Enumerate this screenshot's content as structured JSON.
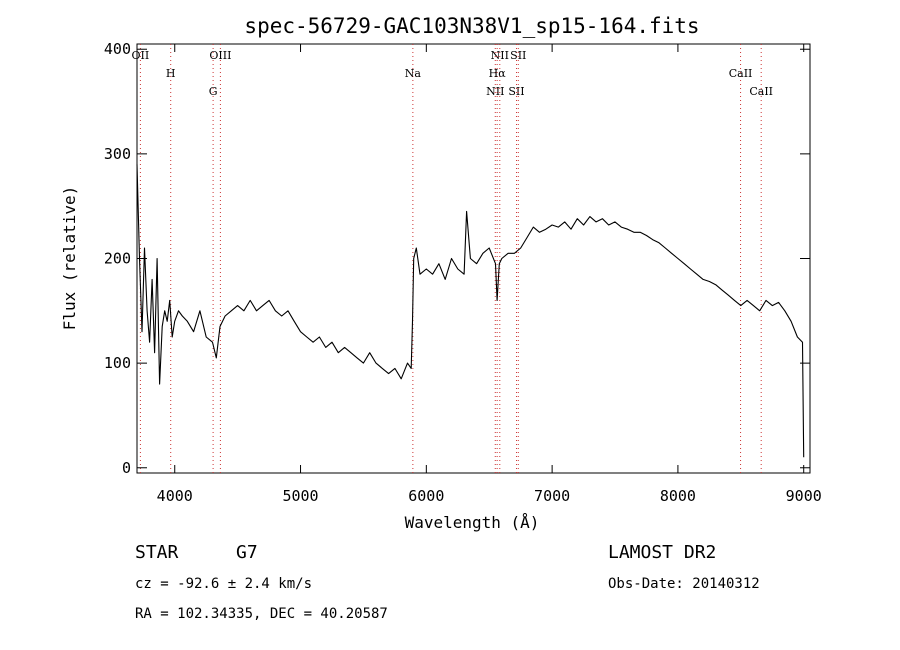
{
  "chart_data": {
    "type": "line",
    "title": "spec-56729-GAC103N38V1_sp15-164.fits",
    "xlabel": "Wavelength (Å)",
    "ylabel": "Flux (relative)",
    "xlim": [
      3700,
      9050
    ],
    "ylim": [
      -5,
      405
    ],
    "xticks": [
      4000,
      5000,
      6000,
      7000,
      8000,
      9000
    ],
    "yticks": [
      0,
      100,
      200,
      300,
      400
    ],
    "grid": false,
    "line_color": "#000000",
    "marker_color": "#cc3333",
    "x": [
      3700,
      3720,
      3740,
      3760,
      3780,
      3800,
      3820,
      3840,
      3860,
      3880,
      3900,
      3920,
      3940,
      3960,
      3980,
      4000,
      4030,
      4060,
      4100,
      4150,
      4200,
      4250,
      4300,
      4330,
      4360,
      4400,
      4450,
      4500,
      4550,
      4600,
      4650,
      4700,
      4750,
      4800,
      4850,
      4900,
      4950,
      5000,
      5050,
      5100,
      5150,
      5200,
      5250,
      5300,
      5350,
      5400,
      5450,
      5500,
      5550,
      5600,
      5650,
      5700,
      5750,
      5800,
      5850,
      5880,
      5890,
      5900,
      5920,
      5950,
      6000,
      6050,
      6100,
      6150,
      6200,
      6250,
      6300,
      6320,
      6350,
      6400,
      6450,
      6500,
      6550,
      6563,
      6580,
      6600,
      6650,
      6700,
      6750,
      6800,
      6850,
      6900,
      6950,
      7000,
      7050,
      7100,
      7150,
      7200,
      7250,
      7300,
      7350,
      7400,
      7450,
      7500,
      7550,
      7600,
      7650,
      7700,
      7750,
      7800,
      7850,
      7900,
      7950,
      8000,
      8050,
      8100,
      8150,
      8200,
      8250,
      8300,
      8350,
      8400,
      8450,
      8500,
      8550,
      8600,
      8650,
      8700,
      8750,
      8800,
      8850,
      8900,
      8950,
      8990,
      9000
    ],
    "y": [
      290,
      200,
      130,
      210,
      150,
      120,
      180,
      110,
      200,
      80,
      135,
      150,
      140,
      160,
      125,
      140,
      150,
      145,
      140,
      130,
      150,
      125,
      120,
      105,
      135,
      145,
      150,
      155,
      150,
      160,
      150,
      155,
      160,
      150,
      145,
      150,
      140,
      130,
      125,
      120,
      125,
      115,
      120,
      110,
      115,
      110,
      105,
      100,
      110,
      100,
      95,
      90,
      95,
      85,
      100,
      95,
      140,
      200,
      210,
      185,
      190,
      185,
      195,
      180,
      200,
      190,
      185,
      245,
      200,
      195,
      205,
      210,
      195,
      160,
      195,
      200,
      205,
      205,
      210,
      220,
      230,
      225,
      228,
      232,
      230,
      235,
      228,
      238,
      232,
      240,
      235,
      238,
      232,
      235,
      230,
      228,
      225,
      225,
      222,
      218,
      215,
      210,
      205,
      200,
      195,
      190,
      185,
      180,
      178,
      175,
      170,
      165,
      160,
      155,
      160,
      155,
      150,
      160,
      155,
      158,
      150,
      140,
      125,
      120,
      10
    ],
    "lines": [
      {
        "label": "OII",
        "x": 3727
      },
      {
        "label": "H",
        "x": 3968
      },
      {
        "label": "G",
        "x": 4305
      },
      {
        "label": "OIII",
        "x": 4363
      },
      {
        "label": "Na",
        "x": 5893
      },
      {
        "label": "NII",
        "x": 6548
      },
      {
        "label": "NII",
        "x": 6584
      },
      {
        "label": "Hα",
        "x": 6563
      },
      {
        "label": "SII",
        "x": 6717
      },
      {
        "label": "SII",
        "x": 6731
      },
      {
        "label": "CaII",
        "x": 8498
      },
      {
        "label": "CaII",
        "x": 8662
      }
    ]
  },
  "info": {
    "object_type": "STAR",
    "subclass": "G7",
    "survey": "LAMOST DR2",
    "redshift_line": "cz = -92.6 ± 2.4 km/s",
    "obs_date": "Obs-Date: 20140312",
    "coords": "RA = 102.34335, DEC =  40.20587"
  }
}
